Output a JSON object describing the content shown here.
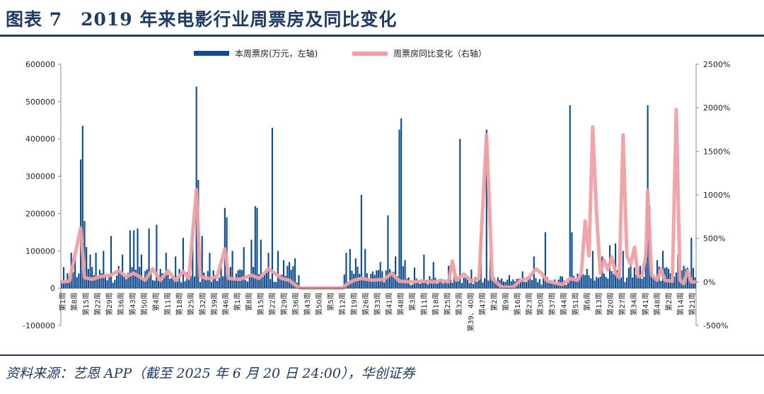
{
  "page": {
    "title": "图表 7　2019 年来电影行业周票房及同比变化",
    "source": "资料来源：艺恩 APP（截至 2025 年 6 月 20 日 24:00），华创证券"
  },
  "chart_data": {
    "type": "bar+line",
    "title": "",
    "legend": {
      "placement": "top-center",
      "items": [
        "本周票房(万元，左轴)",
        "周票房同比变化（右轴）"
      ]
    },
    "colors": {
      "bar": "#0d4c92",
      "line": "#f0a0a3"
    },
    "y_left": {
      "label": "",
      "lim": [
        -100000,
        600000
      ],
      "ticks": [
        "-100000",
        "0",
        "100000",
        "200000",
        "300000",
        "400000",
        "500000",
        "600000"
      ]
    },
    "y_right": {
      "label": "",
      "lim": [
        -500,
        2500
      ],
      "ticks": [
        "-500%",
        "0%",
        "500%",
        "1000%",
        "1500%",
        "2000%",
        "2500%"
      ]
    },
    "x_tick_labels": [
      "第1周",
      "第8周",
      "第15周",
      "第22周",
      "第29周",
      "第36周",
      "第43周",
      "第50周",
      "第4周",
      "第11周",
      "第18周",
      "第25周",
      "第32周",
      "第39周",
      "第46周",
      "第1周",
      "第8周",
      "第15周",
      "第22周",
      "第29周",
      "第36周",
      "第43周",
      "第50周",
      "第5周",
      "第12周",
      "第19周",
      "第26周",
      "第33周",
      "第41周",
      "第48周",
      "第3周",
      "第11周",
      "第18周",
      "第25周",
      "第32周",
      "第39、40周",
      "第47周",
      "第2周",
      "第9周",
      "第16周",
      "第23周",
      "第30周",
      "第37周",
      "第44周",
      "第51周",
      "第6周",
      "第13周",
      "第20周",
      "第27周",
      "第34周",
      "第41周",
      "第48周",
      "第2周",
      "第14周",
      "第21周"
    ],
    "weeks_count": 335,
    "bar_peaks": [
      {
        "w": 5,
        "v": 95000
      },
      {
        "w": 7,
        "v": 78000
      },
      {
        "w": 10,
        "v": 345000
      },
      {
        "w": 11,
        "v": 435000
      },
      {
        "w": 12,
        "v": 180000
      },
      {
        "w": 13,
        "v": 110000
      },
      {
        "w": 15,
        "v": 90000
      },
      {
        "w": 18,
        "v": 95000
      },
      {
        "w": 22,
        "v": 100000
      },
      {
        "w": 26,
        "v": 140000
      },
      {
        "w": 32,
        "v": 90000
      },
      {
        "w": 36,
        "v": 155000
      },
      {
        "w": 38,
        "v": 155000
      },
      {
        "w": 40,
        "v": 160000
      },
      {
        "w": 42,
        "v": 90000
      },
      {
        "w": 46,
        "v": 160000
      },
      {
        "w": 50,
        "v": 170000
      },
      {
        "w": 55,
        "v": 95000
      },
      {
        "w": 60,
        "v": 85000
      },
      {
        "w": 64,
        "v": 135000
      },
      {
        "w": 69,
        "v": 150000
      },
      {
        "w": 71,
        "v": 540000
      },
      {
        "w": 72,
        "v": 290000
      },
      {
        "w": 74,
        "v": 140000
      },
      {
        "w": 78,
        "v": 95000
      },
      {
        "w": 84,
        "v": 80000
      },
      {
        "w": 86,
        "v": 215000
      },
      {
        "w": 87,
        "v": 190000
      },
      {
        "w": 90,
        "v": 100000
      },
      {
        "w": 96,
        "v": 110000
      },
      {
        "w": 100,
        "v": 130000
      },
      {
        "w": 102,
        "v": 220000
      },
      {
        "w": 103,
        "v": 215000
      },
      {
        "w": 105,
        "v": 130000
      },
      {
        "w": 109,
        "v": 95000
      },
      {
        "w": 111,
        "v": 430000
      },
      {
        "w": 114,
        "v": 100000
      },
      {
        "w": 117,
        "v": 75000
      },
      {
        "w": 120,
        "v": 70000
      },
      {
        "w": 123,
        "v": 80000
      },
      {
        "w": 125,
        "v": 35000
      },
      {
        "w": 150,
        "v": 95000
      },
      {
        "w": 152,
        "v": 105000
      },
      {
        "w": 155,
        "v": 80000
      },
      {
        "w": 158,
        "v": 250000
      },
      {
        "w": 160,
        "v": 105000
      },
      {
        "w": 164,
        "v": 45000
      },
      {
        "w": 168,
        "v": 70000
      },
      {
        "w": 172,
        "v": 195000
      },
      {
        "w": 176,
        "v": 85000
      },
      {
        "w": 178,
        "v": 425000
      },
      {
        "w": 179,
        "v": 455000
      },
      {
        "w": 181,
        "v": 75000
      },
      {
        "w": 186,
        "v": 55000
      },
      {
        "w": 191,
        "v": 90000
      },
      {
        "w": 196,
        "v": 70000
      },
      {
        "w": 204,
        "v": 60000
      },
      {
        "w": 210,
        "v": 400000
      },
      {
        "w": 216,
        "v": 50000
      },
      {
        "w": 221,
        "v": 150000
      },
      {
        "w": 224,
        "v": 425000
      },
      {
        "w": 226,
        "v": 80000
      },
      {
        "w": 236,
        "v": 35000
      },
      {
        "w": 243,
        "v": 45000
      },
      {
        "w": 249,
        "v": 85000
      },
      {
        "w": 255,
        "v": 150000
      },
      {
        "w": 268,
        "v": 490000
      },
      {
        "w": 269,
        "v": 150000
      },
      {
        "w": 273,
        "v": 30000
      },
      {
        "w": 280,
        "v": 100000
      },
      {
        "w": 285,
        "v": 85000
      },
      {
        "w": 289,
        "v": 115000
      },
      {
        "w": 292,
        "v": 120000
      },
      {
        "w": 296,
        "v": 100000
      },
      {
        "w": 300,
        "v": 60000
      },
      {
        "w": 305,
        "v": 60000
      },
      {
        "w": 308,
        "v": 100000
      },
      {
        "w": 309,
        "v": 490000
      },
      {
        "w": 310,
        "v": 220000
      },
      {
        "w": 314,
        "v": 75000
      },
      {
        "w": 317,
        "v": 100000
      },
      {
        "w": 321,
        "v": 40000
      },
      {
        "w": 325,
        "v": 90000
      },
      {
        "w": 328,
        "v": 60000
      },
      {
        "w": 332,
        "v": 135000
      }
    ],
    "bar_baseline_note": "bars mostly 30000-80000 elsewhere; near zero in weeks 126-148",
    "line_points": [
      {
        "w": 0,
        "y": 0
      },
      {
        "w": 4,
        "y": 10
      },
      {
        "w": 10,
        "y": 620
      },
      {
        "w": 12,
        "y": 50
      },
      {
        "w": 16,
        "y": 30
      },
      {
        "w": 20,
        "y": 60
      },
      {
        "w": 26,
        "y": 80
      },
      {
        "w": 30,
        "y": 130
      },
      {
        "w": 34,
        "y": 60
      },
      {
        "w": 38,
        "y": 100
      },
      {
        "w": 44,
        "y": 20
      },
      {
        "w": 48,
        "y": 150
      },
      {
        "w": 52,
        "y": 20
      },
      {
        "w": 56,
        "y": 130
      },
      {
        "w": 60,
        "y": 20
      },
      {
        "w": 64,
        "y": 120
      },
      {
        "w": 67,
        "y": 40
      },
      {
        "w": 71,
        "y": 1060
      },
      {
        "w": 73,
        "y": 60
      },
      {
        "w": 78,
        "y": 40
      },
      {
        "w": 82,
        "y": 60
      },
      {
        "w": 86,
        "y": 380
      },
      {
        "w": 88,
        "y": 40
      },
      {
        "w": 94,
        "y": 30
      },
      {
        "w": 100,
        "y": 80
      },
      {
        "w": 104,
        "y": 40
      },
      {
        "w": 109,
        "y": 150
      },
      {
        "w": 111,
        "y": 120
      },
      {
        "w": 116,
        "y": 40
      },
      {
        "w": 120,
        "y": 20
      },
      {
        "w": 124,
        "y": -50
      },
      {
        "w": 126,
        "y": -70
      },
      {
        "w": 148,
        "y": -70
      },
      {
        "w": 150,
        "y": -30
      },
      {
        "w": 154,
        "y": 20
      },
      {
        "w": 158,
        "y": 40
      },
      {
        "w": 164,
        "y": 20
      },
      {
        "w": 170,
        "y": 30
      },
      {
        "w": 174,
        "y": 100
      },
      {
        "w": 178,
        "y": 10
      },
      {
        "w": 184,
        "y": 0
      },
      {
        "w": 190,
        "y": 10
      },
      {
        "w": 196,
        "y": 0
      },
      {
        "w": 200,
        "y": 20
      },
      {
        "w": 204,
        "y": 0
      },
      {
        "w": 206,
        "y": 240
      },
      {
        "w": 208,
        "y": 20
      },
      {
        "w": 212,
        "y": 90
      },
      {
        "w": 216,
        "y": 10
      },
      {
        "w": 220,
        "y": 40
      },
      {
        "w": 224,
        "y": 1690
      },
      {
        "w": 227,
        "y": 40
      },
      {
        "w": 232,
        "y": -60
      },
      {
        "w": 238,
        "y": -60
      },
      {
        "w": 242,
        "y": 20
      },
      {
        "w": 246,
        "y": 40
      },
      {
        "w": 250,
        "y": 150
      },
      {
        "w": 253,
        "y": 100
      },
      {
        "w": 256,
        "y": 10
      },
      {
        "w": 260,
        "y": -10
      },
      {
        "w": 264,
        "y": -30
      },
      {
        "w": 268,
        "y": 40
      },
      {
        "w": 272,
        "y": 20
      },
      {
        "w": 274,
        "y": 100
      },
      {
        "w": 276,
        "y": 700
      },
      {
        "w": 278,
        "y": 300
      },
      {
        "w": 280,
        "y": 1780
      },
      {
        "w": 282,
        "y": 780
      },
      {
        "w": 284,
        "y": 100
      },
      {
        "w": 286,
        "y": 250
      },
      {
        "w": 288,
        "y": 140
      },
      {
        "w": 290,
        "y": 290
      },
      {
        "w": 292,
        "y": 100
      },
      {
        "w": 294,
        "y": 50
      },
      {
        "w": 296,
        "y": 1690
      },
      {
        "w": 298,
        "y": 300
      },
      {
        "w": 300,
        "y": 200
      },
      {
        "w": 302,
        "y": 400
      },
      {
        "w": 304,
        "y": 60
      },
      {
        "w": 306,
        "y": 70
      },
      {
        "w": 308,
        "y": 300
      },
      {
        "w": 309,
        "y": 1050
      },
      {
        "w": 311,
        "y": 80
      },
      {
        "w": 314,
        "y": 20
      },
      {
        "w": 316,
        "y": 150
      },
      {
        "w": 318,
        "y": 20
      },
      {
        "w": 322,
        "y": 10
      },
      {
        "w": 324,
        "y": 1980
      },
      {
        "w": 326,
        "y": 20
      },
      {
        "w": 328,
        "y": -20
      },
      {
        "w": 330,
        "y": 130
      },
      {
        "w": 332,
        "y": 0
      },
      {
        "w": 334,
        "y": 0
      }
    ]
  }
}
